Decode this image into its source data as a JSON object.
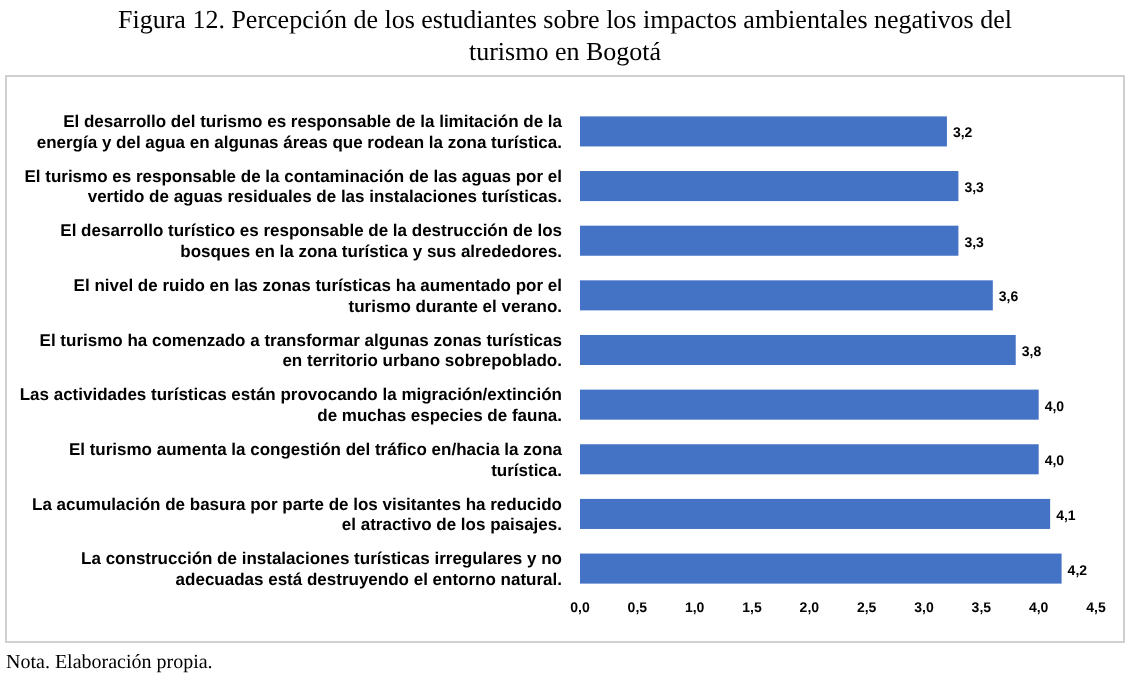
{
  "chart_data": {
    "type": "bar",
    "orientation": "horizontal",
    "title": "Figura 12. Percepción de los estudiantes sobre los impactos ambientales negativos del turismo en Bogotá",
    "categories": [
      "El desarrollo del turismo es responsable de la limitación de la energía y del agua en algunas áreas que rodean la zona turística.",
      "El turismo es responsable de la contaminación de las aguas  por el vertido de aguas residuales de las instalaciones turísticas.",
      "El desarrollo turístico es responsable de la destrucción de los bosques en la zona turística y sus alrededores.",
      "El nivel de ruido en las zonas turísticas ha aumentado por el turismo durante el verano.",
      "El turismo ha comenzado a transformar algunas zonas turísticas en territorio urbano sobrepoblado.",
      "Las actividades turísticas están provocando la migración/extinción de muchas especies de fauna.",
      "El turismo aumenta la congestión del tráfico en/hacia la zona turística.",
      "La acumulación de basura por parte de los visitantes ha reducido el atractivo de los paisajes.",
      "La construcción de instalaciones turísticas irregulares y no adecuadas está destruyendo el entorno natural."
    ],
    "values": [
      3.2,
      3.3,
      3.3,
      3.6,
      3.8,
      4.0,
      4.0,
      4.1,
      4.2
    ],
    "value_labels": [
      "3,2",
      "3,3",
      "3,3",
      "3,6",
      "3,8",
      "4,0",
      "4,0",
      "4,1",
      "4,2"
    ],
    "color": "#4472c4",
    "xlim": [
      0,
      4.5
    ],
    "xticks": [
      {
        "value": 0,
        "label": "0,0"
      },
      {
        "value": 0.5,
        "label": "0,5"
      },
      {
        "value": 1,
        "label": "1,0"
      },
      {
        "value": 1.5,
        "label": "1,5"
      },
      {
        "value": 2,
        "label": "2,0"
      },
      {
        "value": 2.5,
        "label": "2,5"
      },
      {
        "value": 3,
        "label": "3,0"
      },
      {
        "value": 3.5,
        "label": "3,5"
      },
      {
        "value": 4,
        "label": "4,0"
      },
      {
        "value": 4.5,
        "label": "4,5"
      }
    ],
    "grid": false,
    "annotations": [
      "Nota. Elaboración propia."
    ]
  }
}
